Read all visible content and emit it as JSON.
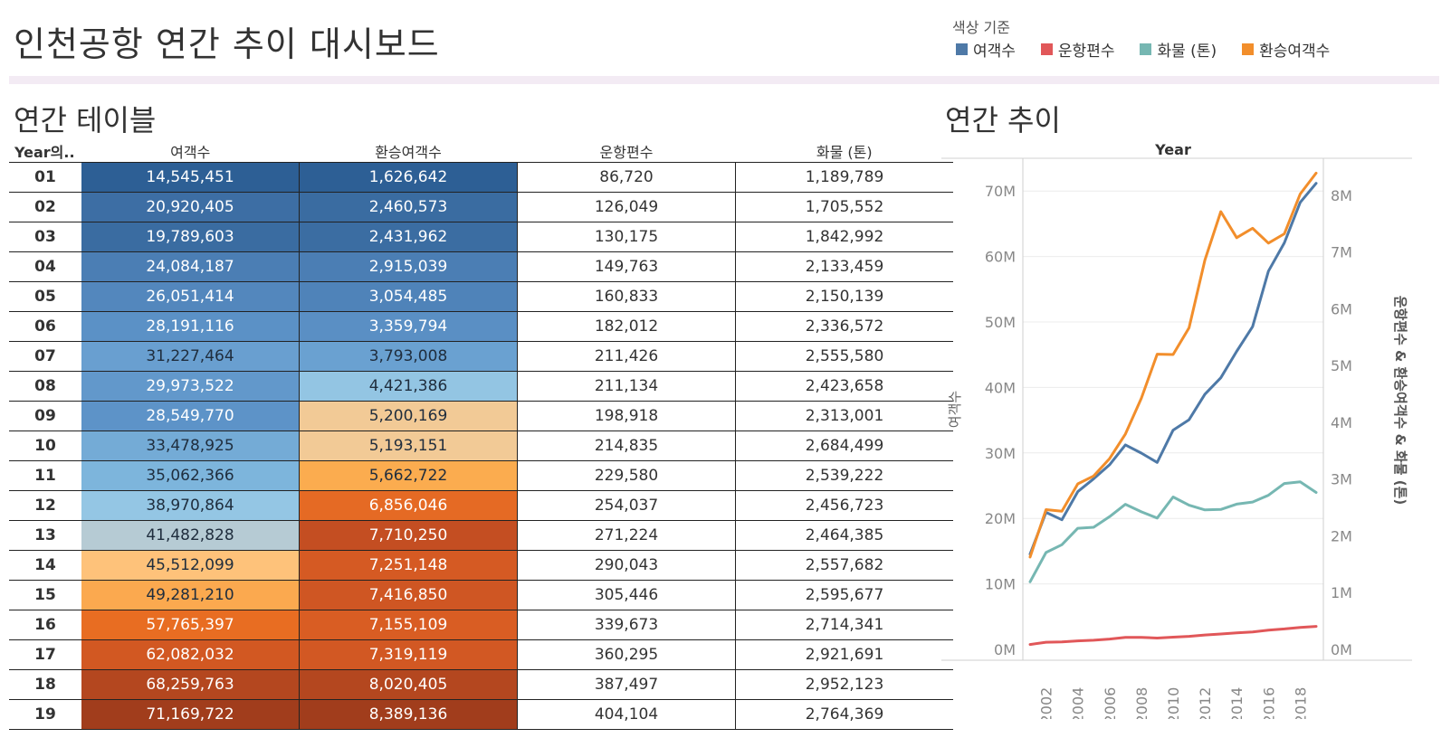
{
  "header": {
    "title": "인천공항 연간 추이 대시보드",
    "legend_title": "색상 기준",
    "legend": [
      {
        "label": "여객수",
        "color": "#4e79a7"
      },
      {
        "label": "운항편수",
        "color": "#e15759"
      },
      {
        "label": "화물 (톤)",
        "color": "#76b7b2"
      },
      {
        "label": "환승여객수",
        "color": "#f28e2b"
      }
    ]
  },
  "table": {
    "title": "연간 테이블",
    "columns": [
      "Year의..",
      "여객수",
      "환승여객수",
      "운항편수",
      "화물 (톤)"
    ],
    "rows": [
      {
        "year": "01",
        "passengers": "14,545,451",
        "transfer": "1,626,642",
        "flights": "86,720",
        "cargo": "1,189,789",
        "p_color": "#2d5f95",
        "t_color": "#2d5f95",
        "p_text": "#ffffff",
        "t_text": "#ffffff"
      },
      {
        "year": "02",
        "passengers": "20,920,405",
        "transfer": "2,460,573",
        "flights": "126,049",
        "cargo": "1,705,552",
        "p_color": "#3d6ea4",
        "t_color": "#3a6ca1",
        "p_text": "#ffffff",
        "t_text": "#ffffff"
      },
      {
        "year": "03",
        "passengers": "19,789,603",
        "transfer": "2,431,962",
        "flights": "130,175",
        "cargo": "1,842,992",
        "p_color": "#3a6ca1",
        "t_color": "#3b6da2",
        "p_text": "#ffffff",
        "t_text": "#ffffff"
      },
      {
        "year": "04",
        "passengers": "24,084,187",
        "transfer": "2,915,039",
        "flights": "149,763",
        "cargo": "2,133,459",
        "p_color": "#4b7eb4",
        "t_color": "#4b7eb4",
        "p_text": "#ffffff",
        "t_text": "#ffffff"
      },
      {
        "year": "05",
        "passengers": "26,051,414",
        "transfer": "3,054,485",
        "flights": "160,833",
        "cargo": "2,150,139",
        "p_color": "#5387bd",
        "t_color": "#4f83b9",
        "p_text": "#ffffff",
        "t_text": "#ffffff"
      },
      {
        "year": "06",
        "passengers": "28,191,116",
        "transfer": "3,359,794",
        "flights": "182,012",
        "cargo": "2,336,572",
        "p_color": "#5b91c6",
        "t_color": "#5a8fc4",
        "p_text": "#ffffff",
        "t_text": "#ffffff"
      },
      {
        "year": "07",
        "passengers": "31,227,464",
        "transfer": "3,793,008",
        "flights": "211,426",
        "cargo": "2,555,580",
        "p_color": "#699fd0",
        "t_color": "#6aa1d1",
        "p_text": "#1f2d3d",
        "t_text": "#1f2d3d"
      },
      {
        "year": "08",
        "passengers": "29,973,522",
        "transfer": "4,421,386",
        "flights": "211,134",
        "cargo": "2,423,658",
        "p_color": "#6298cb",
        "t_color": "#93c5e3",
        "p_text": "#ffffff",
        "t_text": "#1f2d3d"
      },
      {
        "year": "09",
        "passengers": "28,549,770",
        "transfer": "5,200,169",
        "flights": "198,918",
        "cargo": "2,313,001",
        "p_color": "#5d93c8",
        "t_color": "#f2ca96",
        "p_text": "#ffffff",
        "t_text": "#1f2d3d"
      },
      {
        "year": "10",
        "passengers": "33,478,925",
        "transfer": "5,193,151",
        "flights": "214,835",
        "cargo": "2,684,499",
        "p_color": "#74abd6",
        "t_color": "#f2ca96",
        "p_text": "#1f2d3d",
        "t_text": "#1f2d3d"
      },
      {
        "year": "11",
        "passengers": "35,062,366",
        "transfer": "5,662,722",
        "flights": "229,580",
        "cargo": "2,539,222",
        "p_color": "#7db5dc",
        "t_color": "#fbac4f",
        "p_text": "#1f2d3d",
        "t_text": "#1f2d3d"
      },
      {
        "year": "12",
        "passengers": "38,970,864",
        "transfer": "6,856,046",
        "flights": "254,037",
        "cargo": "2,456,723",
        "p_color": "#94c6e4",
        "t_color": "#e56a24",
        "p_text": "#1f2d3d",
        "t_text": "#ffffff"
      },
      {
        "year": "13",
        "passengers": "41,482,828",
        "transfer": "7,710,250",
        "flights": "271,224",
        "cargo": "2,464,385",
        "p_color": "#b6cbd4",
        "t_color": "#c44e22",
        "p_text": "#1f2d3d",
        "t_text": "#ffffff"
      },
      {
        "year": "14",
        "passengers": "45,512,099",
        "transfer": "7,251,148",
        "flights": "290,043",
        "cargo": "2,557,682",
        "p_color": "#fec27a",
        "t_color": "#d55a23",
        "p_text": "#1f2d3d",
        "t_text": "#ffffff"
      },
      {
        "year": "15",
        "passengers": "49,281,210",
        "transfer": "7,416,850",
        "flights": "305,446",
        "cargo": "2,595,677",
        "p_color": "#fba94f",
        "t_color": "#cf5623",
        "p_text": "#1f2d3d",
        "t_text": "#ffffff"
      },
      {
        "year": "16",
        "passengers": "57,765,397",
        "transfer": "7,155,109",
        "flights": "339,673",
        "cargo": "2,714,341",
        "p_color": "#e86d22",
        "t_color": "#d95d23",
        "p_text": "#ffffff",
        "t_text": "#ffffff"
      },
      {
        "year": "17",
        "passengers": "62,082,032",
        "transfer": "7,319,119",
        "flights": "360,295",
        "cargo": "2,921,691",
        "p_color": "#d25822",
        "t_color": "#d25823",
        "p_text": "#ffffff",
        "t_text": "#ffffff"
      },
      {
        "year": "18",
        "passengers": "68,259,763",
        "transfer": "8,020,405",
        "flights": "387,497",
        "cargo": "2,952,123",
        "p_color": "#b4471f",
        "t_color": "#b4471f",
        "p_text": "#ffffff",
        "t_text": "#ffffff"
      },
      {
        "year": "19",
        "passengers": "71,169,722",
        "transfer": "8,389,136",
        "flights": "404,104",
        "cargo": "2,764,369",
        "p_color": "#a13d1c",
        "t_color": "#a13d1c",
        "p_text": "#ffffff",
        "t_text": "#ffffff"
      }
    ]
  },
  "chart_data": {
    "type": "line",
    "title": "연간 추이",
    "xlabel": "Year",
    "ylabel": "여객수",
    "y2label": "운항편수 & 환승여객수 & 화물 (톤)",
    "x": [
      2001,
      2002,
      2003,
      2004,
      2005,
      2006,
      2007,
      2008,
      2009,
      2010,
      2011,
      2012,
      2013,
      2014,
      2015,
      2016,
      2017,
      2018,
      2019
    ],
    "x_ticks": [
      "2002",
      "2004",
      "2006",
      "2008",
      "2010",
      "2012",
      "2014",
      "2016",
      "2018"
    ],
    "ylim": [
      0,
      75000000
    ],
    "y_ticks": [
      0,
      10000000,
      20000000,
      30000000,
      40000000,
      50000000,
      60000000,
      70000000
    ],
    "y_tick_labels": [
      "0M",
      "10M",
      "20M",
      "30M",
      "40M",
      "50M",
      "60M",
      "70M"
    ],
    "y2lim": [
      0,
      8650000
    ],
    "y2_ticks": [
      0,
      1000000,
      2000000,
      3000000,
      4000000,
      5000000,
      6000000,
      7000000,
      8000000
    ],
    "y2_tick_labels": [
      "0M",
      "1M",
      "2M",
      "3M",
      "4M",
      "5M",
      "6M",
      "7M",
      "8M"
    ],
    "series": [
      {
        "name": "여객수",
        "axis": "left",
        "color": "#4e79a7",
        "values": [
          14545451,
          20920405,
          19789603,
          24084187,
          26051414,
          28191116,
          31227464,
          29973522,
          28549770,
          33478925,
          35062366,
          38970864,
          41482828,
          45512099,
          49281210,
          57765397,
          62082032,
          68259763,
          71169722
        ]
      },
      {
        "name": "운항편수",
        "axis": "right",
        "color": "#e15759",
        "values": [
          86720,
          126049,
          130175,
          149763,
          160833,
          182012,
          211426,
          211134,
          198918,
          214835,
          229580,
          254037,
          271224,
          290043,
          305446,
          339673,
          360295,
          387497,
          404104
        ]
      },
      {
        "name": "화물 (톤)",
        "axis": "right",
        "color": "#76b7b2",
        "values": [
          1189789,
          1705552,
          1842992,
          2133459,
          2150139,
          2336572,
          2555580,
          2423658,
          2313001,
          2684499,
          2539222,
          2456723,
          2464385,
          2557682,
          2595677,
          2714341,
          2921691,
          2952123,
          2764369
        ]
      },
      {
        "name": "환승여객수",
        "axis": "right",
        "color": "#f28e2b",
        "values": [
          1626642,
          2460573,
          2431962,
          2915039,
          3054485,
          3359794,
          3793008,
          4421386,
          5200169,
          5193151,
          5662722,
          6856046,
          7710250,
          7251148,
          7416850,
          7155109,
          7319119,
          8020405,
          8389136
        ]
      }
    ]
  }
}
